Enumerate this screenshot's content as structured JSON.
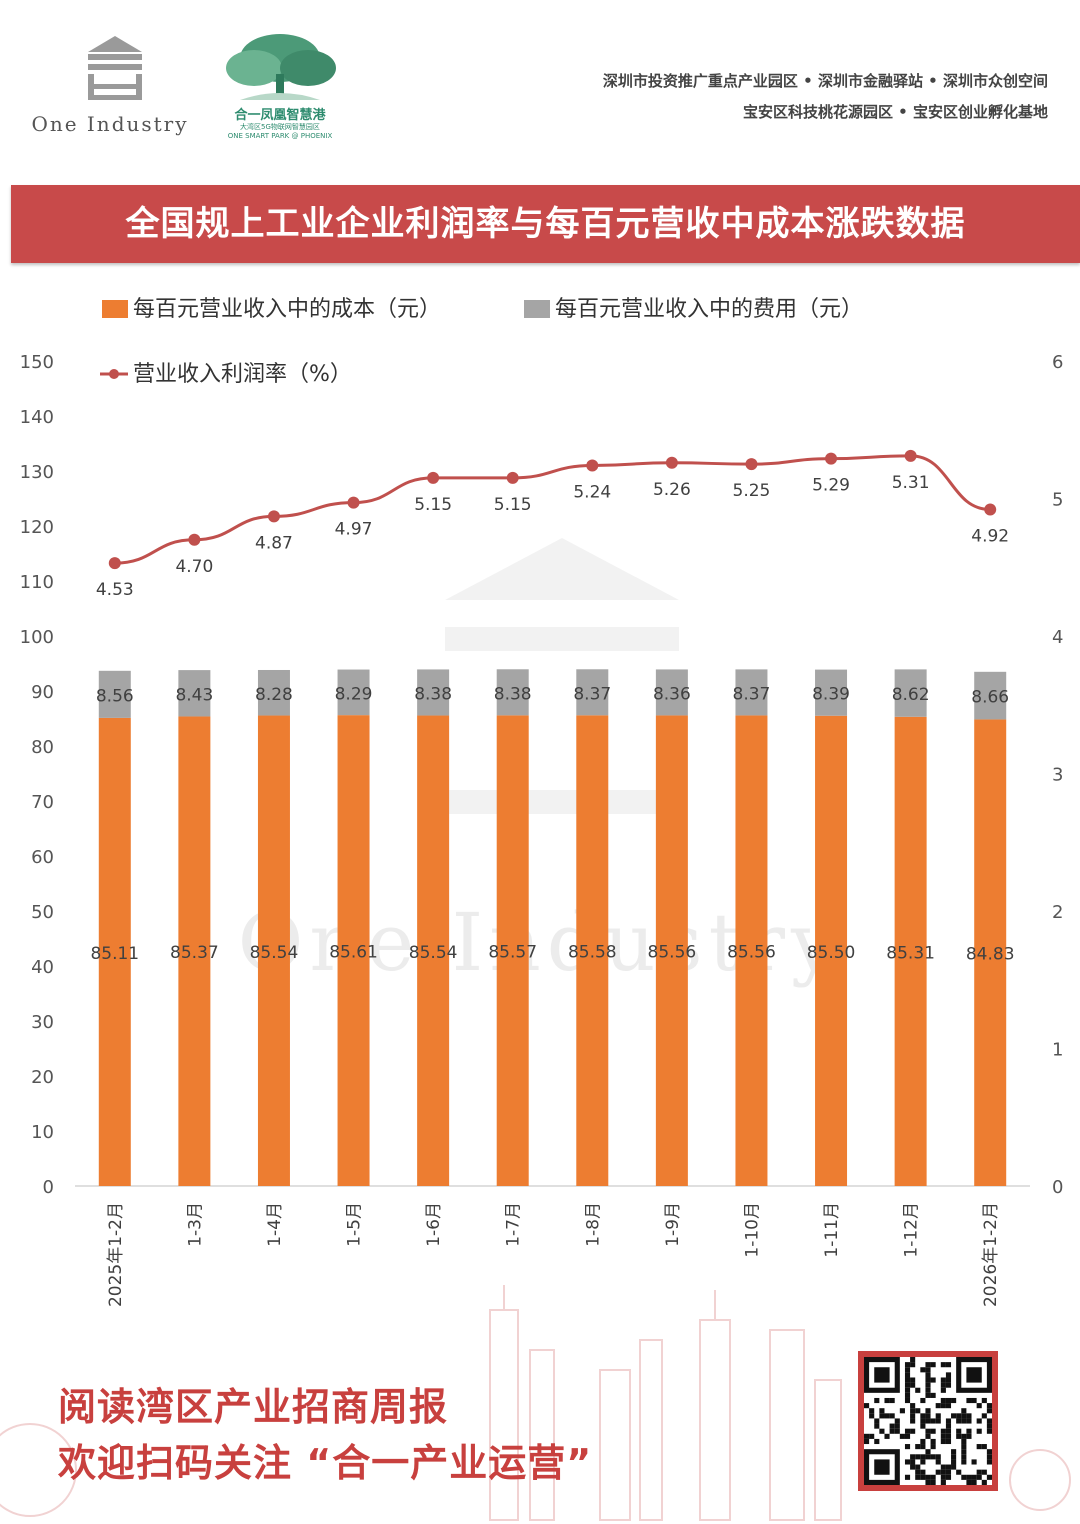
{
  "header": {
    "logo_text": "One Industry",
    "logo2_name": "合一凤凰智慧港",
    "logo2_sub1": "大湾区5G物联网智慧园区",
    "logo2_sub2": "ONE SMART PARK @ PHOENIX",
    "tagline_line1": "深圳市投资推广重点产业园区 • 深圳市金融驿站 • 深圳市众创空间",
    "tagline_line2": "宝安区科技桃花源园区 • 宝安区创业孵化基地"
  },
  "banner": {
    "title": "全国规上工业企业利润率与每百元营收中成本涨跌数据"
  },
  "footer": {
    "line1": "阅读湾区产业招商周报",
    "line2": "欢迎扫码关注 “合一产业运营”"
  },
  "colors": {
    "cost": "#ed7d31",
    "expense": "#a5a5a5",
    "profit_line": "#c0504d",
    "banner": "#c84a4a",
    "accent_red": "#c8403e",
    "logo_green": "#2e8c6f"
  },
  "chart_data": {
    "type": "bar",
    "stacked": true,
    "categories": [
      "2025年1-2月",
      "1-3月",
      "1-4月",
      "1-5月",
      "1-6月",
      "1-7月",
      "1-8月",
      "1-9月",
      "1-10月",
      "1-11月",
      "1-12月",
      "2026年1-2月"
    ],
    "series": [
      {
        "name": "每百元营业收入中的成本（元）",
        "type": "bar",
        "axis": "left",
        "values": [
          85.11,
          85.37,
          85.54,
          85.61,
          85.54,
          85.57,
          85.58,
          85.56,
          85.56,
          85.5,
          85.31,
          84.83
        ]
      },
      {
        "name": "每百元营业收入中的费用（元）",
        "type": "bar",
        "axis": "left",
        "values": [
          8.56,
          8.43,
          8.28,
          8.29,
          8.38,
          8.38,
          8.37,
          8.36,
          8.37,
          8.39,
          8.62,
          8.66
        ]
      },
      {
        "name": "营业收入利润率（%）",
        "type": "line",
        "axis": "right",
        "values": [
          4.53,
          4.7,
          4.87,
          4.97,
          5.15,
          5.15,
          5.24,
          5.26,
          5.25,
          5.29,
          5.31,
          4.92
        ]
      }
    ],
    "left_axis": {
      "min": 0,
      "max": 150,
      "ticks": [
        0,
        10,
        20,
        30,
        40,
        50,
        60,
        70,
        80,
        90,
        100,
        110,
        120,
        130,
        140,
        150
      ]
    },
    "right_axis": {
      "min": 0,
      "max": 6,
      "ticks": [
        0,
        1,
        2,
        3,
        4,
        5,
        6
      ]
    },
    "legend": "top",
    "grid": false
  }
}
